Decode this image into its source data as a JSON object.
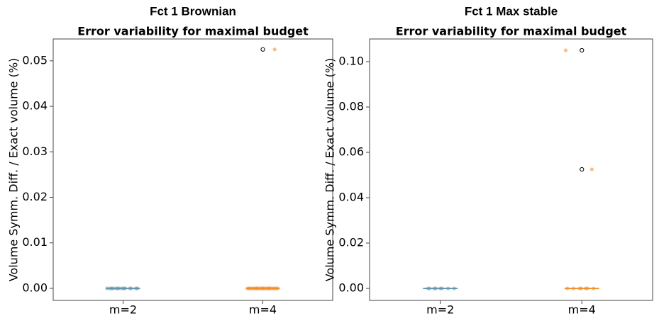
{
  "chart_data": [
    {
      "type": "box",
      "suptitle": "Fct 1 Brownian",
      "title": "Error variability for maximal budget",
      "ylabel": "Volume Symm. Diff. / Exact volume (%)",
      "categories": [
        "m=2",
        "m=4"
      ],
      "ylim": [
        -0.00265,
        0.0548
      ],
      "yticks": [
        {
          "value": 0,
          "label": "0.00"
        },
        {
          "value": 0.01,
          "label": "0.01"
        },
        {
          "value": 0.02,
          "label": "0.02"
        },
        {
          "value": 0.03,
          "label": "0.03"
        },
        {
          "value": 0.04,
          "label": "0.04"
        },
        {
          "value": 0.05,
          "label": "0.05"
        }
      ],
      "groups": [
        {
          "color": "#5f93ad",
          "points": [
            0,
            0,
            0,
            0,
            0,
            0,
            0,
            0,
            0,
            0,
            0,
            0,
            0,
            0
          ],
          "box": {
            "q1": 0,
            "median": 0,
            "q3": 0,
            "whislo": 0,
            "whishi": 0,
            "fliers": []
          }
        },
        {
          "color": "#f28c28",
          "points": [
            0,
            0,
            0,
            0,
            0,
            0,
            0,
            0,
            0,
            0,
            0,
            0,
            0,
            0,
            0,
            0,
            0,
            0,
            0,
            0,
            0,
            0,
            0,
            0,
            0.0525
          ],
          "box": {
            "q1": 0,
            "median": 0,
            "q3": 0,
            "whislo": 0,
            "whishi": 0,
            "fliers": [
              0.0525
            ]
          }
        }
      ]
    },
    {
      "type": "box",
      "suptitle": "Fct 1 Max stable",
      "title": "Error variability for maximal budget",
      "ylabel": "Volume Symm. Diff. / Exact volume (%)",
      "categories": [
        "m=2",
        "m=4"
      ],
      "ylim": [
        -0.0053,
        0.11
      ],
      "yticks": [
        {
          "value": 0,
          "label": "0.00"
        },
        {
          "value": 0.02,
          "label": "0.02"
        },
        {
          "value": 0.04,
          "label": "0.04"
        },
        {
          "value": 0.06,
          "label": "0.06"
        },
        {
          "value": 0.08,
          "label": "0.08"
        },
        {
          "value": 0.1,
          "label": "0.10"
        }
      ],
      "groups": [
        {
          "color": "#5f93ad",
          "points": [
            0,
            0,
            0,
            0,
            0,
            0,
            0,
            0
          ],
          "box": {
            "q1": 0,
            "median": 0,
            "q3": 0,
            "whislo": 0,
            "whishi": 0,
            "fliers": []
          }
        },
        {
          "color": "#f28c28",
          "points": [
            0,
            0,
            0,
            0,
            0,
            0,
            0,
            0.0525,
            0.105
          ],
          "box": {
            "q1": 0,
            "median": 0,
            "q3": 0,
            "whislo": 0,
            "whishi": 0,
            "fliers": [
              0.0525,
              0.105
            ]
          }
        }
      ]
    }
  ]
}
